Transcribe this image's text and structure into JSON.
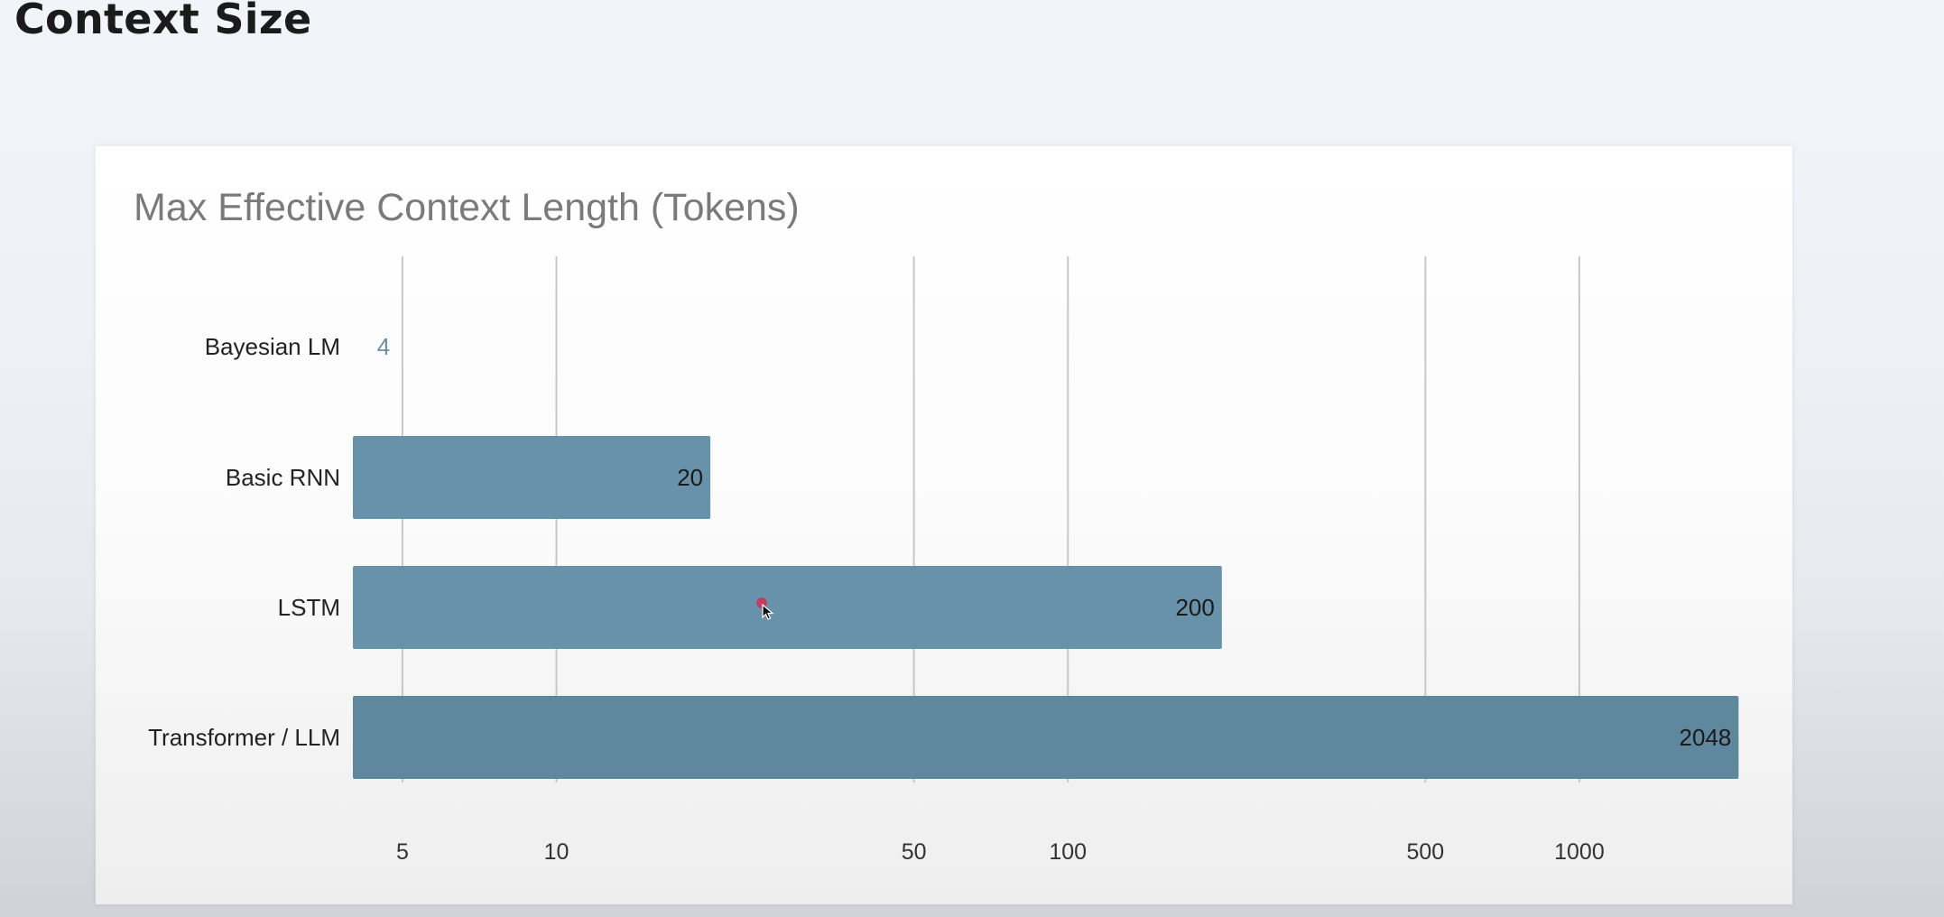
{
  "slide": {
    "title": "Context Size"
  },
  "chart_data": {
    "type": "bar",
    "orientation": "horizontal",
    "title": "Max Effective Context Length (Tokens)",
    "xlabel": "",
    "ylabel": "",
    "x_scale": "log",
    "xlim": [
      4,
      2200
    ],
    "categories": [
      "Bayesian LM",
      "Basic RNN",
      "LSTM",
      "Transformer / LLM"
    ],
    "values": [
      4,
      20,
      200,
      2048
    ],
    "data_labels": [
      "4",
      "20",
      "200",
      "2048"
    ],
    "ticks": [
      5,
      10,
      50,
      100,
      500,
      1000
    ],
    "tick_labels": [
      "5",
      "10",
      "50",
      "100",
      "500",
      "1000"
    ],
    "grid": "vertical",
    "legend": "none",
    "colors": {
      "bar": "#6792aa",
      "bar_dark": "#5f879e",
      "small_value_label": "#6b8fa5",
      "grid": "#c8c8c8",
      "title": "#7a7a7a",
      "cursor_dot": "#cc3355"
    }
  }
}
